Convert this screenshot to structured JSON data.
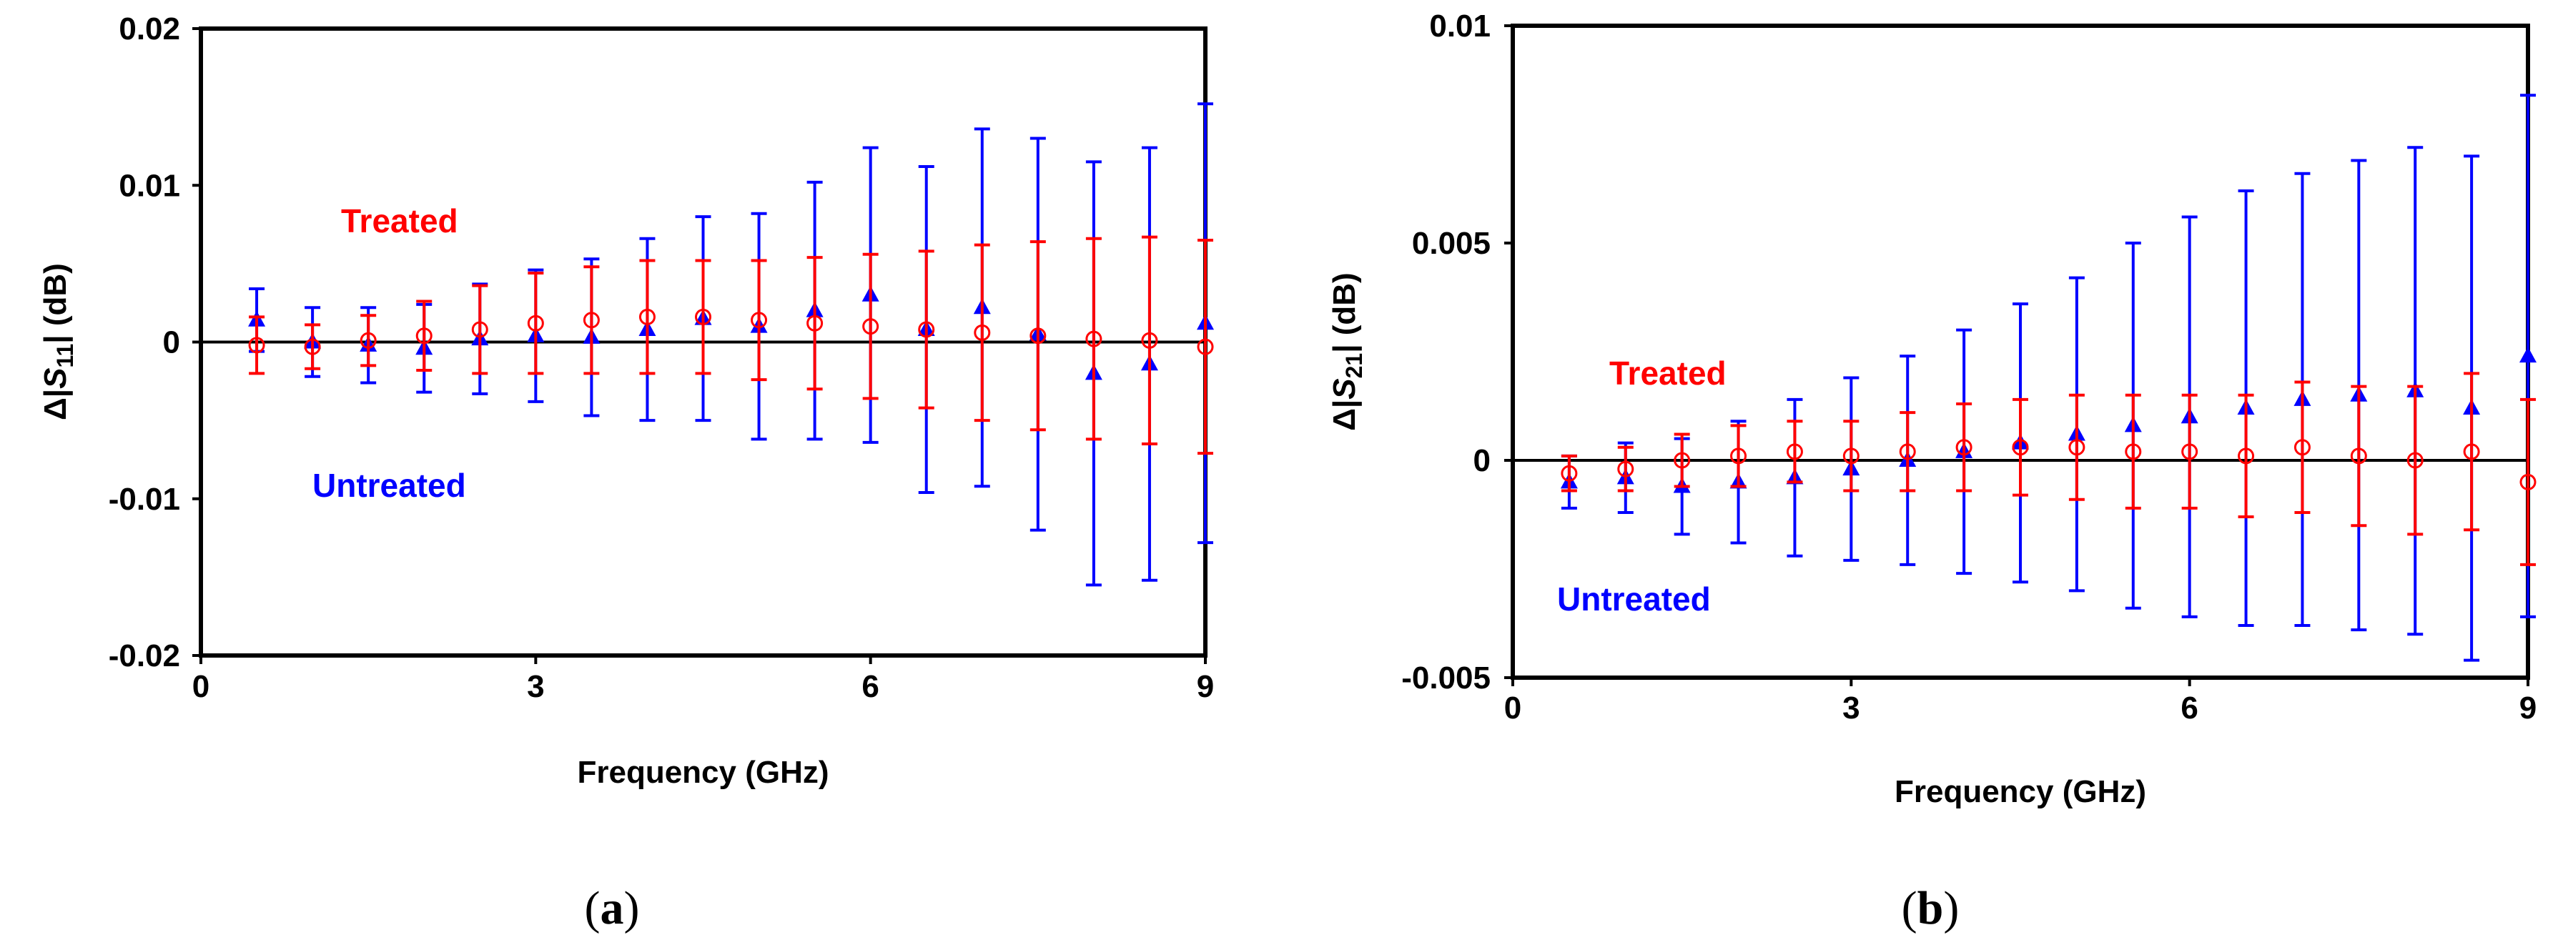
{
  "chart_data": [
    {
      "type": "scatter",
      "panel": "a",
      "xlabel": "Frequency (GHz)",
      "ylabel_prefix": "Δ|",
      "ylabel_var": "S",
      "ylabel_sub": "11",
      "ylabel_suffix": "| (dB)",
      "xlim": [
        0,
        9
      ],
      "ylim": [
        -0.02,
        0.02
      ],
      "xticks": [
        "0",
        "3",
        "6",
        "9"
      ],
      "xtick_values": [
        0,
        3,
        6,
        9
      ],
      "yticks": [
        "0.02",
        "0.01",
        "0",
        "-0.01",
        "-0.02"
      ],
      "ytick_values": [
        0.02,
        0.01,
        0,
        -0.01,
        -0.02
      ],
      "annotations": {
        "treated": "Treated",
        "untreated": "Untreated"
      },
      "series": [
        {
          "name": "Treated",
          "color": "#ff0000",
          "marker": "circle-open",
          "x": [
            0.5,
            1.0,
            1.5,
            2.0,
            2.5,
            3.0,
            3.5,
            4.0,
            4.5,
            5.0,
            5.5,
            6.0,
            6.5,
            7.0,
            7.5,
            8.0,
            8.5,
            9.0
          ],
          "y": [
            -0.0002,
            -0.0003,
            0.0001,
            0.0004,
            0.0008,
            0.0012,
            0.0014,
            0.0016,
            0.0016,
            0.0014,
            0.0012,
            0.001,
            0.0008,
            0.0006,
            0.0004,
            0.0002,
            0.0001,
            -0.0003
          ],
          "err": [
            0.0018,
            0.0014,
            0.0016,
            0.0022,
            0.0028,
            0.0032,
            0.0034,
            0.0036,
            0.0036,
            0.0038,
            0.0042,
            0.0046,
            0.005,
            0.0056,
            0.006,
            0.0064,
            0.0066,
            0.0068
          ]
        },
        {
          "name": "Untreated",
          "color": "#0000ff",
          "marker": "triangle",
          "x": [
            0.5,
            1.0,
            1.5,
            2.0,
            2.5,
            3.0,
            3.5,
            4.0,
            4.5,
            5.0,
            5.5,
            6.0,
            6.5,
            7.0,
            7.5,
            8.0,
            8.5,
            9.0
          ],
          "y": [
            0.0014,
            0.0,
            -0.0002,
            -0.0004,
            0.0002,
            0.0004,
            0.0003,
            0.0008,
            0.0015,
            0.001,
            0.002,
            0.003,
            0.0008,
            0.0022,
            0.0005,
            -0.002,
            -0.0014,
            0.0012
          ],
          "err": [
            0.002,
            0.0022,
            0.0024,
            0.0028,
            0.0035,
            0.0042,
            0.005,
            0.0058,
            0.0065,
            0.0072,
            0.0082,
            0.0094,
            0.0104,
            0.0114,
            0.0125,
            0.0135,
            0.0138,
            0.014
          ]
        }
      ]
    },
    {
      "type": "scatter",
      "panel": "b",
      "xlabel": "Frequency (GHz)",
      "ylabel_prefix": "Δ|",
      "ylabel_var": "S",
      "ylabel_sub": "21",
      "ylabel_suffix": "| (dB)",
      "xlim": [
        0,
        9
      ],
      "ylim": [
        -0.005,
        0.01
      ],
      "xticks": [
        "0",
        "3",
        "6",
        "9"
      ],
      "xtick_values": [
        0,
        3,
        6,
        9
      ],
      "yticks": [
        "0.01",
        "0.005",
        "0",
        "-0.005"
      ],
      "ytick_values": [
        0.01,
        0.005,
        0,
        -0.005
      ],
      "annotations": {
        "treated": "Treated",
        "untreated": "Untreated"
      },
      "series": [
        {
          "name": "Treated",
          "color": "#ff0000",
          "marker": "circle-open",
          "x": [
            0.5,
            1.0,
            1.5,
            2.0,
            2.5,
            3.0,
            3.5,
            4.0,
            4.5,
            5.0,
            5.5,
            6.0,
            6.5,
            7.0,
            7.5,
            8.0,
            8.5,
            9.0
          ],
          "y": [
            -0.0003,
            -0.0002,
            0.0,
            0.0001,
            0.0002,
            0.0001,
            0.0002,
            0.0003,
            0.0003,
            0.0003,
            0.0002,
            0.0002,
            0.0001,
            0.0003,
            0.0001,
            0.0,
            0.0002,
            -0.0005
          ],
          "err": [
            0.0004,
            0.0005,
            0.0006,
            0.0007,
            0.0007,
            0.0008,
            0.0009,
            0.001,
            0.0011,
            0.0012,
            0.0013,
            0.0013,
            0.0014,
            0.0015,
            0.0016,
            0.0017,
            0.0018,
            0.0019
          ]
        },
        {
          "name": "Untreated",
          "color": "#0000ff",
          "marker": "triangle",
          "x": [
            0.5,
            1.0,
            1.5,
            2.0,
            2.5,
            3.0,
            3.5,
            4.0,
            4.5,
            5.0,
            5.5,
            6.0,
            6.5,
            7.0,
            7.5,
            8.0,
            8.5,
            9.0
          ],
          "y": [
            -0.0005,
            -0.0004,
            -0.0006,
            -0.0005,
            -0.0004,
            -0.0002,
            0.0,
            0.0002,
            0.0004,
            0.0006,
            0.0008,
            0.001,
            0.0012,
            0.0014,
            0.0015,
            0.0016,
            0.0012,
            0.0024
          ],
          "err": [
            0.0006,
            0.0008,
            0.0011,
            0.0014,
            0.0018,
            0.0021,
            0.0024,
            0.0028,
            0.0032,
            0.0036,
            0.0042,
            0.0046,
            0.005,
            0.0052,
            0.0054,
            0.0056,
            0.0058,
            0.006
          ]
        }
      ]
    }
  ],
  "captions": {
    "a": "a",
    "b": "b",
    "open": "(",
    "close": ")"
  }
}
